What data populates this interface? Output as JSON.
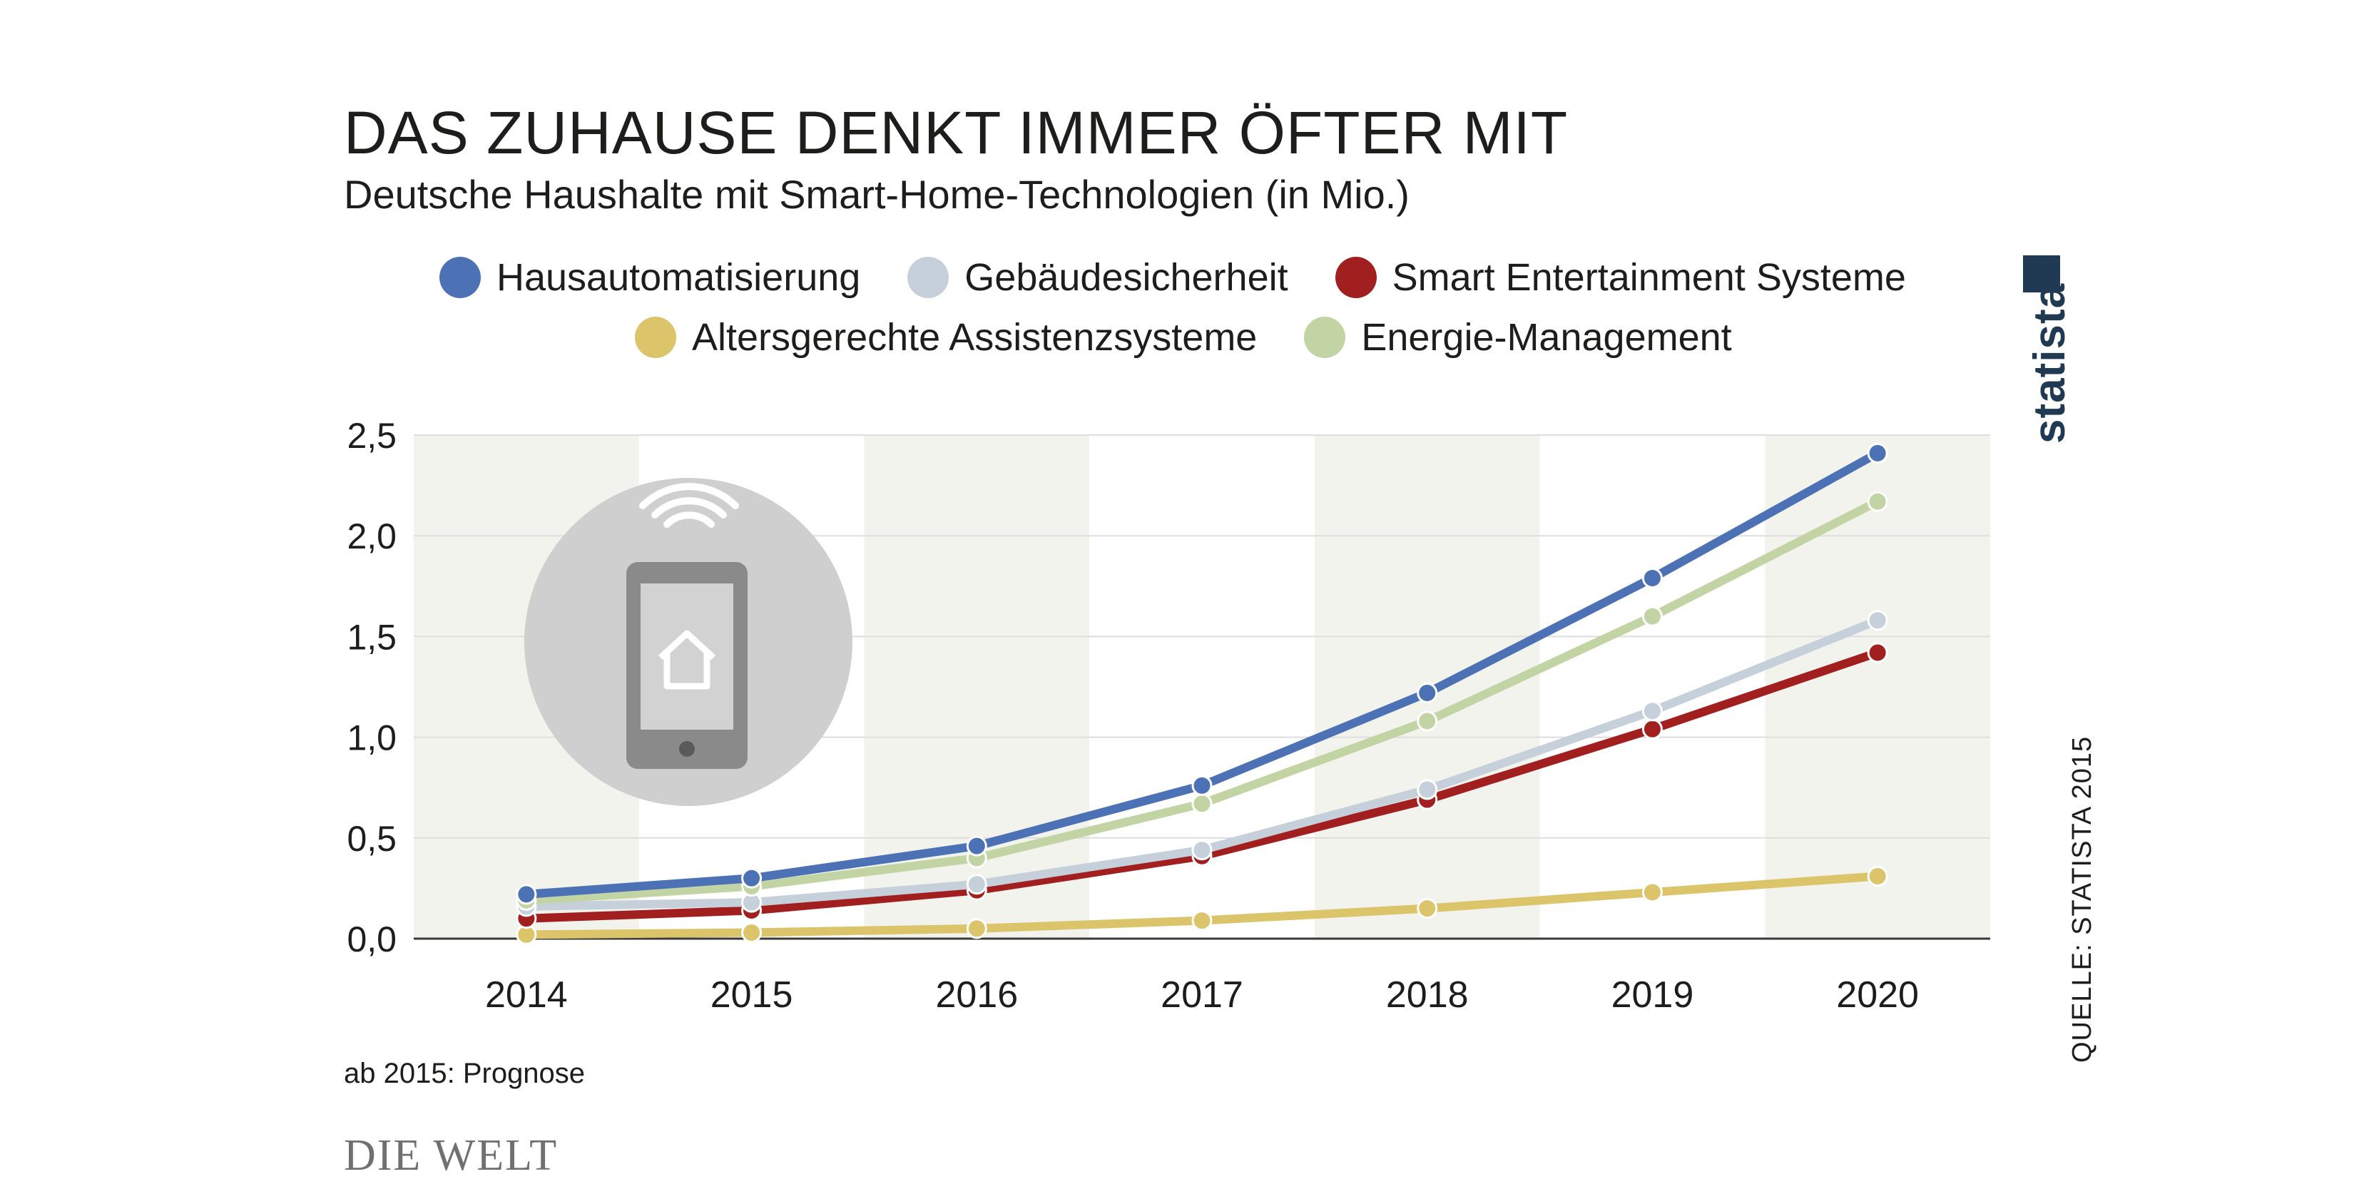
{
  "header": {
    "title": "DAS ZUHAUSE DENKT IMMER ÖFTER MIT",
    "subtitle": "Deutsche Haushalte mit Smart-Home-Technologien (in Mio.)"
  },
  "footer": {
    "note": "ab 2015: Prognose",
    "publisher": "DIE WELT",
    "brand": "statista",
    "source": "QUELLE: STATISTA 2015"
  },
  "illustration": {
    "icon": "smartphone-smart-home-icon"
  },
  "chart_data": {
    "type": "line",
    "title": "DAS ZUHAUSE DENKT IMMER ÖFTER MIT",
    "subtitle": "Deutsche Haushalte mit Smart-Home-Technologien (in Mio.)",
    "xlabel": "",
    "ylabel": "",
    "x": [
      "2014",
      "2015",
      "2016",
      "2017",
      "2018",
      "2019",
      "2020"
    ],
    "ylim": [
      0,
      2.5
    ],
    "yticks": [
      "0,0",
      "0,5",
      "1,0",
      "1,5",
      "2,0",
      "2,5"
    ],
    "grid": true,
    "legend_position": "top",
    "series": [
      {
        "name": "Hausautomatisierung",
        "color": "#4c72b5",
        "values": [
          0.22,
          0.3,
          0.46,
          0.76,
          1.22,
          1.79,
          2.41
        ]
      },
      {
        "name": "Gebäudesicherheit",
        "color": "#c6d0da",
        "values": [
          0.16,
          0.18,
          0.27,
          0.44,
          0.74,
          1.13,
          1.58
        ]
      },
      {
        "name": "Smart Entertainment Systeme",
        "color": "#a21f1f",
        "values": [
          0.1,
          0.14,
          0.24,
          0.41,
          0.69,
          1.04,
          1.42
        ]
      },
      {
        "name": "Altersgerechte Assistenzsysteme",
        "color": "#dcc46a",
        "values": [
          0.02,
          0.03,
          0.05,
          0.09,
          0.15,
          0.23,
          0.31
        ]
      },
      {
        "name": "Energie-Management",
        "color": "#c3d4a4",
        "values": [
          0.19,
          0.26,
          0.4,
          0.67,
          1.08,
          1.6,
          2.17
        ]
      }
    ]
  }
}
